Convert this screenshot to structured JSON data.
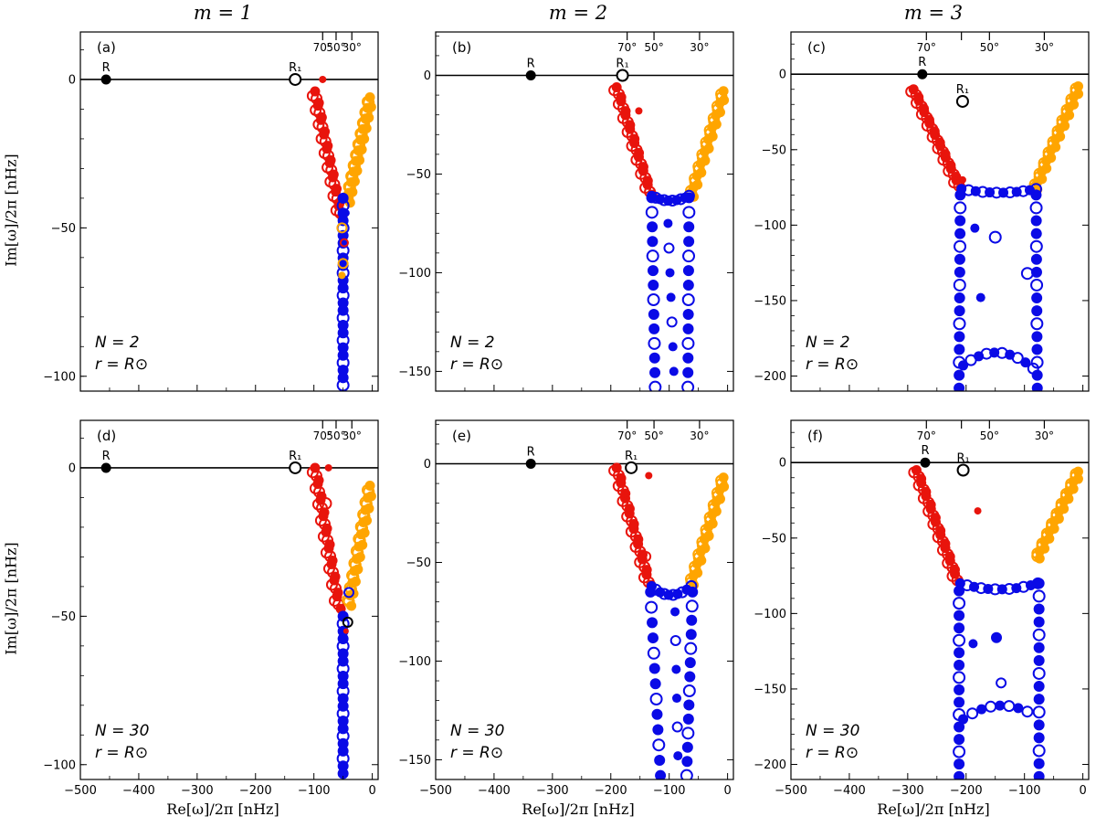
{
  "figure": {
    "column_titles": [
      "m = 1",
      "m = 2",
      "m = 3"
    ],
    "ylabel": "Im[ω]/2π [nHz]",
    "xlabel": "Re[ω]/2π [nHz]",
    "colors": {
      "red": "#e8140c",
      "orange": "#ffa500",
      "blue": "#0a0ae6",
      "black": "#000000"
    }
  },
  "chart_data": [
    {
      "type": "scatter",
      "panel": "(a)",
      "m": 1,
      "N": 2,
      "annotation_N": "N = 2",
      "annotation_r": "r = R⊙",
      "xlim": [
        -500,
        10
      ],
      "ylim": [
        -105,
        16
      ],
      "xticks": [
        -500,
        -400,
        -300,
        -200,
        -100,
        0
      ],
      "yticks": [
        0,
        -50,
        -100
      ],
      "show_xticklabels": false,
      "top_axis": {
        "positions": [
          -85,
          -62,
          -35
        ],
        "labels": [
          "70°",
          "50°",
          "30°"
        ]
      },
      "markers": [
        {
          "label": "R",
          "x": -456,
          "y": 0,
          "filled": true
        },
        {
          "label": "R₁",
          "x": -132,
          "y": 0,
          "filled": false
        }
      ],
      "red_branch": {
        "start": [
          -98,
          -4
        ],
        "end": [
          -55,
          -45
        ],
        "n": 18
      },
      "orange_branch": {
        "start": [
          -4,
          -6
        ],
        "end": [
          -42,
          -40
        ],
        "n": 20
      },
      "blue_arms": [
        {
          "start": [
            -50,
            -40
          ],
          "end": [
            -50,
            -103
          ],
          "n": 26
        }
      ],
      "blue_bottom": null,
      "extra_points": [
        {
          "x": -85,
          "y": 0,
          "c": "red",
          "filled": true,
          "r": 4
        },
        {
          "x": -52,
          "y": -50,
          "c": "orange",
          "filled": false,
          "r": 5
        },
        {
          "x": -48,
          "y": -55,
          "c": "red",
          "filled": false,
          "r": 4
        },
        {
          "x": -50,
          "y": -62,
          "c": "orange",
          "filled": false,
          "r": 5
        },
        {
          "x": -52,
          "y": -66,
          "c": "orange",
          "filled": true,
          "r": 4
        },
        {
          "x": -45,
          "y": -45,
          "c": "blue",
          "filled": true,
          "r": 4
        }
      ]
    },
    {
      "type": "scatter",
      "panel": "(b)",
      "m": 2,
      "N": 2,
      "annotation_N": "N = 2",
      "annotation_r": "r = R⊙",
      "xlim": [
        -500,
        10
      ],
      "ylim": [
        -160,
        22
      ],
      "xticks": [
        -500,
        -400,
        -300,
        -200,
        -100,
        0
      ],
      "yticks": [
        0,
        -50,
        -100,
        -150
      ],
      "show_xticklabels": false,
      "top_axis": {
        "positions": [
          -172,
          -126,
          -48
        ],
        "labels": [
          "70°",
          "50°",
          "30°"
        ]
      },
      "markers": [
        {
          "label": "R",
          "x": -337,
          "y": 0,
          "filled": true
        },
        {
          "label": "R₁",
          "x": -180,
          "y": 0,
          "filled": false
        }
      ],
      "red_branch": {
        "start": [
          -190,
          -6
        ],
        "end": [
          -133,
          -59
        ],
        "n": 16
      },
      "orange_branch": {
        "start": [
          -7,
          -8
        ],
        "end": [
          -62,
          -60
        ],
        "n": 18
      },
      "blue_arms": [
        {
          "start": [
            -130,
            -62
          ],
          "end": [
            -124,
            -158
          ],
          "n": 14
        },
        {
          "start": [
            -66,
            -62
          ],
          "end": [
            -68,
            -158
          ],
          "n": 14
        },
        {
          "start": [
            -102,
            -75
          ],
          "end": [
            -92,
            -150
          ],
          "n": 7
        }
      ],
      "blue_bottom": {
        "start": [
          -130,
          -61
        ],
        "mid": [
          -98,
          -66
        ],
        "end": [
          -66,
          -61
        ],
        "n": 10
      },
      "extra_points": [
        {
          "x": -152,
          "y": -18,
          "c": "red",
          "filled": true,
          "r": 4
        }
      ]
    },
    {
      "type": "scatter",
      "panel": "(c)",
      "m": 3,
      "N": 2,
      "annotation_N": "N = 2",
      "annotation_r": "r = R⊙",
      "xlim": [
        -500,
        10
      ],
      "ylim": [
        -210,
        28
      ],
      "xticks": [
        -500,
        -400,
        -300,
        -200,
        -100,
        0
      ],
      "yticks": [
        0,
        -50,
        -100,
        -150,
        -200
      ],
      "show_xticklabels": false,
      "top_axis": {
        "positions": [
          -268,
          -208,
          -160,
          -66
        ],
        "labels": [
          "70°",
          "",
          "50°",
          "30°"
        ]
      },
      "markers": [
        {
          "label": "R",
          "x": -275,
          "y": 0,
          "filled": true
        },
        {
          "label": "R₁",
          "x": -206,
          "y": -18,
          "filled": false
        }
      ],
      "red_branch": {
        "start": [
          -290,
          -10
        ],
        "end": [
          -212,
          -74
        ],
        "n": 18
      },
      "orange_branch": {
        "start": [
          -8,
          -8
        ],
        "end": [
          -82,
          -75
        ],
        "n": 20
      },
      "blue_arms": [
        {
          "start": [
            -210,
            -80
          ],
          "end": [
            -212,
            -208
          ],
          "n": 16
        },
        {
          "start": [
            -80,
            -80
          ],
          "end": [
            -78,
            -208
          ],
          "n": 16
        }
      ],
      "blue_bottom": {
        "start": [
          -208,
          -76
        ],
        "mid": [
          -140,
          -81
        ],
        "end": [
          -80,
          -76
        ],
        "n": 12
      },
      "blue_inner_arc": {
        "start": [
          -205,
          -193
        ],
        "mid": [
          -145,
          -175
        ],
        "end": [
          -85,
          -195
        ],
        "n": 10
      },
      "extra_points": [
        {
          "x": -206,
          "y": -70,
          "c": "red",
          "filled": true,
          "r": 4
        },
        {
          "x": -150,
          "y": -108,
          "c": "blue",
          "filled": false,
          "r": 6
        },
        {
          "x": -95,
          "y": -132,
          "c": "blue",
          "filled": false,
          "r": 6
        },
        {
          "x": -185,
          "y": -102,
          "c": "blue",
          "filled": true,
          "r": 5
        },
        {
          "x": -175,
          "y": -148,
          "c": "blue",
          "filled": true,
          "r": 5
        }
      ]
    },
    {
      "type": "scatter",
      "panel": "(d)",
      "m": 1,
      "N": 30,
      "annotation_N": "N = 30",
      "annotation_r": "r = R⊙",
      "xlim": [
        -500,
        10
      ],
      "ylim": [
        -105,
        16
      ],
      "xticks": [
        -500,
        -400,
        -300,
        -200,
        -100,
        0
      ],
      "yticks": [
        0,
        -50,
        -100
      ],
      "show_xticklabels": true,
      "top_axis": {
        "positions": [
          -85,
          -62,
          -35
        ],
        "labels": [
          "70°",
          "50°",
          "30°"
        ]
      },
      "markers": [
        {
          "label": "R",
          "x": -456,
          "y": 0,
          "filled": true
        },
        {
          "label": "R₁",
          "x": -132,
          "y": 0,
          "filled": false
        }
      ],
      "red_branch": {
        "start": [
          -98,
          0
        ],
        "end": [
          -58,
          -46
        ],
        "n": 18
      },
      "orange_branch": {
        "start": [
          -4,
          -6
        ],
        "end": [
          -40,
          -45
        ],
        "n": 20
      },
      "blue_arms": [
        {
          "start": [
            -50,
            -50
          ],
          "end": [
            -50,
            -103
          ],
          "n": 22
        }
      ],
      "blue_bottom": null,
      "extra_points": [
        {
          "x": -75,
          "y": 0,
          "c": "red",
          "filled": true,
          "r": 4
        },
        {
          "x": -80,
          "y": -12,
          "c": "red",
          "filled": false,
          "r": 6
        },
        {
          "x": -42,
          "y": -52,
          "c": "black",
          "filled": false,
          "r": 5
        },
        {
          "x": -40,
          "y": -42,
          "c": "blue",
          "filled": false,
          "r": 5
        },
        {
          "x": -45,
          "y": -55,
          "c": "red",
          "filled": true,
          "r": 3
        }
      ]
    },
    {
      "type": "scatter",
      "panel": "(e)",
      "m": 2,
      "N": 30,
      "annotation_N": "N = 30",
      "annotation_r": "r = R⊙",
      "xlim": [
        -500,
        10
      ],
      "ylim": [
        -160,
        22
      ],
      "xticks": [
        -500,
        -400,
        -300,
        -200,
        -100,
        0
      ],
      "yticks": [
        0,
        -50,
        -100,
        -150
      ],
      "show_xticklabels": true,
      "top_axis": {
        "positions": [
          -172,
          -126,
          -48
        ],
        "labels": [
          "70°",
          "50°",
          "30°"
        ]
      },
      "markers": [
        {
          "label": "R",
          "x": -337,
          "y": 0,
          "filled": true
        },
        {
          "label": "R₁",
          "x": -165,
          "y": -2,
          "filled": false
        }
      ],
      "red_branch": {
        "start": [
          -190,
          -2
        ],
        "end": [
          -135,
          -60
        ],
        "n": 16
      },
      "orange_branch": {
        "start": [
          -7,
          -7
        ],
        "end": [
          -62,
          -60
        ],
        "n": 18
      },
      "blue_arms": [
        {
          "start": [
            -132,
            -65
          ],
          "end": [
            -115,
            -158
          ],
          "n": 13
        },
        {
          "start": [
            -60,
            -65
          ],
          "end": [
            -70,
            -158
          ],
          "n": 14
        },
        {
          "start": [
            -90,
            -75
          ],
          "end": [
            -85,
            -148
          ],
          "n": 6
        }
      ],
      "blue_bottom": {
        "start": [
          -130,
          -62
        ],
        "mid": [
          -98,
          -71
        ],
        "end": [
          -62,
          -62
        ],
        "n": 10
      },
      "extra_points": [
        {
          "x": -135,
          "y": -6,
          "c": "red",
          "filled": true,
          "r": 4
        },
        {
          "x": -140,
          "y": -47,
          "c": "red",
          "filled": false,
          "r": 5
        }
      ]
    },
    {
      "type": "scatter",
      "panel": "(f)",
      "m": 3,
      "N": 30,
      "annotation_N": "N = 30",
      "annotation_r": "r = R⊙",
      "xlim": [
        -500,
        10
      ],
      "ylim": [
        -210,
        28
      ],
      "xticks": [
        -500,
        -400,
        -300,
        -200,
        -100,
        0
      ],
      "yticks": [
        0,
        -50,
        -100,
        -150,
        -200
      ],
      "show_xticklabels": true,
      "top_axis": {
        "positions": [
          -268,
          -208,
          -160,
          -66
        ],
        "labels": [
          "70°",
          "",
          "50°",
          "30°"
        ]
      },
      "markers": [
        {
          "label": "R",
          "x": -270,
          "y": 0,
          "filled": true
        },
        {
          "label": "R₁",
          "x": -205,
          "y": -5,
          "filled": false
        }
      ],
      "red_branch": {
        "start": [
          -285,
          -5
        ],
        "end": [
          -215,
          -78
        ],
        "n": 18
      },
      "orange_branch": {
        "start": [
          -8,
          -6
        ],
        "end": [
          -78,
          -62
        ],
        "n": 18
      },
      "blue_arms": [
        {
          "start": [
            -212,
            -85
          ],
          "end": [
            -212,
            -208
          ],
          "n": 16
        },
        {
          "start": [
            -75,
            -80
          ],
          "end": [
            -75,
            -208
          ],
          "n": 16
        }
      ],
      "blue_bottom": {
        "start": [
          -210,
          -80
        ],
        "mid": [
          -145,
          -88
        ],
        "end": [
          -77,
          -80
        ],
        "n": 12
      },
      "blue_inner_arc": {
        "start": [
          -205,
          -170
        ],
        "mid": [
          -150,
          -155
        ],
        "end": [
          -95,
          -165
        ],
        "n": 8
      },
      "extra_points": [
        {
          "x": -180,
          "y": -32,
          "c": "red",
          "filled": true,
          "r": 4
        },
        {
          "x": -148,
          "y": -116,
          "c": "blue",
          "filled": true,
          "r": 6
        },
        {
          "x": -140,
          "y": -146,
          "c": "blue",
          "filled": false,
          "r": 5
        },
        {
          "x": -188,
          "y": -120,
          "c": "blue",
          "filled": true,
          "r": 5
        }
      ]
    }
  ]
}
